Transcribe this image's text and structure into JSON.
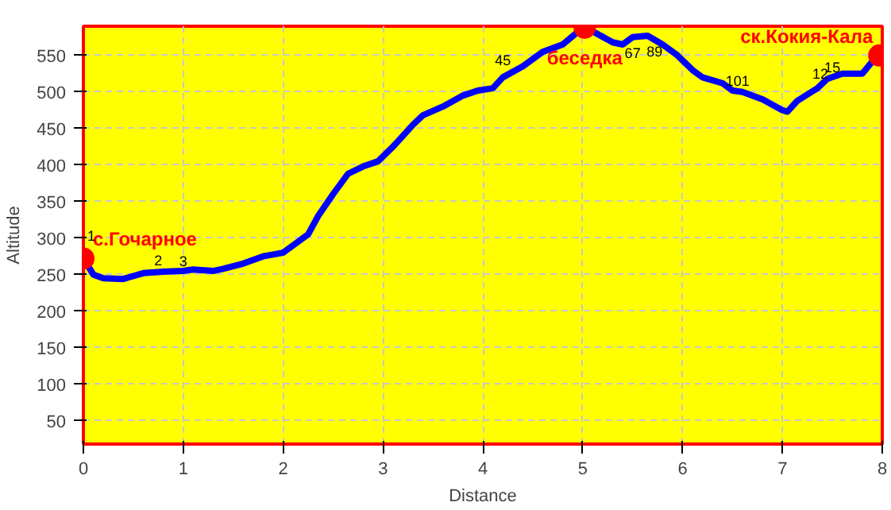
{
  "chart_data": {
    "type": "line",
    "xlabel": "Distance",
    "ylabel": "Altitude",
    "xlim": [
      0,
      8
    ],
    "ylim": [
      18,
      590
    ],
    "xticks": [
      0,
      1,
      2,
      3,
      4,
      5,
      6,
      7,
      8
    ],
    "yticks": [
      50,
      100,
      150,
      200,
      250,
      300,
      350,
      400,
      450,
      500,
      550
    ],
    "grid": true,
    "marker": "none",
    "line_style": "solid",
    "series": [
      {
        "color": "#0000ff",
        "x": [
          0,
          0.1,
          0.2,
          0.4,
          0.5,
          0.6,
          0.8,
          1.0,
          1.1,
          1.3,
          1.4,
          1.6,
          1.8,
          2.0,
          2.1,
          2.25,
          2.35,
          2.5,
          2.65,
          2.8,
          2.95,
          3.1,
          3.3,
          3.4,
          3.6,
          3.8,
          3.95,
          4.1,
          4.2,
          4.4,
          4.6,
          4.8,
          5.0,
          5.1,
          5.3,
          5.4,
          5.5,
          5.65,
          5.8,
          5.95,
          6.1,
          6.2,
          6.4,
          6.5,
          6.6,
          6.8,
          7.0,
          7.05,
          7.15,
          7.35,
          7.45,
          7.6,
          7.8,
          7.95
        ],
        "values": [
          272,
          250,
          245,
          244,
          248,
          252,
          254,
          255,
          257,
          255,
          258,
          265,
          275,
          280,
          290,
          305,
          330,
          360,
          388,
          398,
          405,
          425,
          455,
          468,
          480,
          495,
          502,
          505,
          520,
          535,
          555,
          565,
          588,
          583,
          568,
          565,
          575,
          577,
          565,
          550,
          530,
          520,
          512,
          502,
          500,
          490,
          475,
          473,
          488,
          505,
          518,
          525,
          525,
          550
        ]
      },
      {
        "type": "scatter",
        "color": "#ff0000",
        "marker": "circle",
        "x": [
          0,
          5.02,
          7.97
        ],
        "values": [
          272,
          588,
          550
        ]
      }
    ],
    "annotations": [
      {
        "text": "с.Гочарное",
        "x": 0,
        "y": 272
      },
      {
        "text": "беседка",
        "x": 5.02,
        "y": 588
      },
      {
        "text": "ск.Кокия-Кала",
        "x": 7.97,
        "y": 550
      },
      {
        "text": "1",
        "x": 0.08,
        "y": 290
      },
      {
        "text": "2",
        "x": 0.75,
        "y": 256
      },
      {
        "text": "3",
        "x": 1.0,
        "y": 255
      },
      {
        "text": "45",
        "x": 4.2,
        "y": 530
      },
      {
        "text": "67",
        "x": 5.5,
        "y": 575
      },
      {
        "text": "89",
        "x": 5.72,
        "y": 577
      },
      {
        "text": "101",
        "x": 6.55,
        "y": 502
      },
      {
        "text": "12",
        "x": 7.38,
        "y": 512
      },
      {
        "text": "15",
        "x": 7.5,
        "y": 520
      }
    ]
  }
}
